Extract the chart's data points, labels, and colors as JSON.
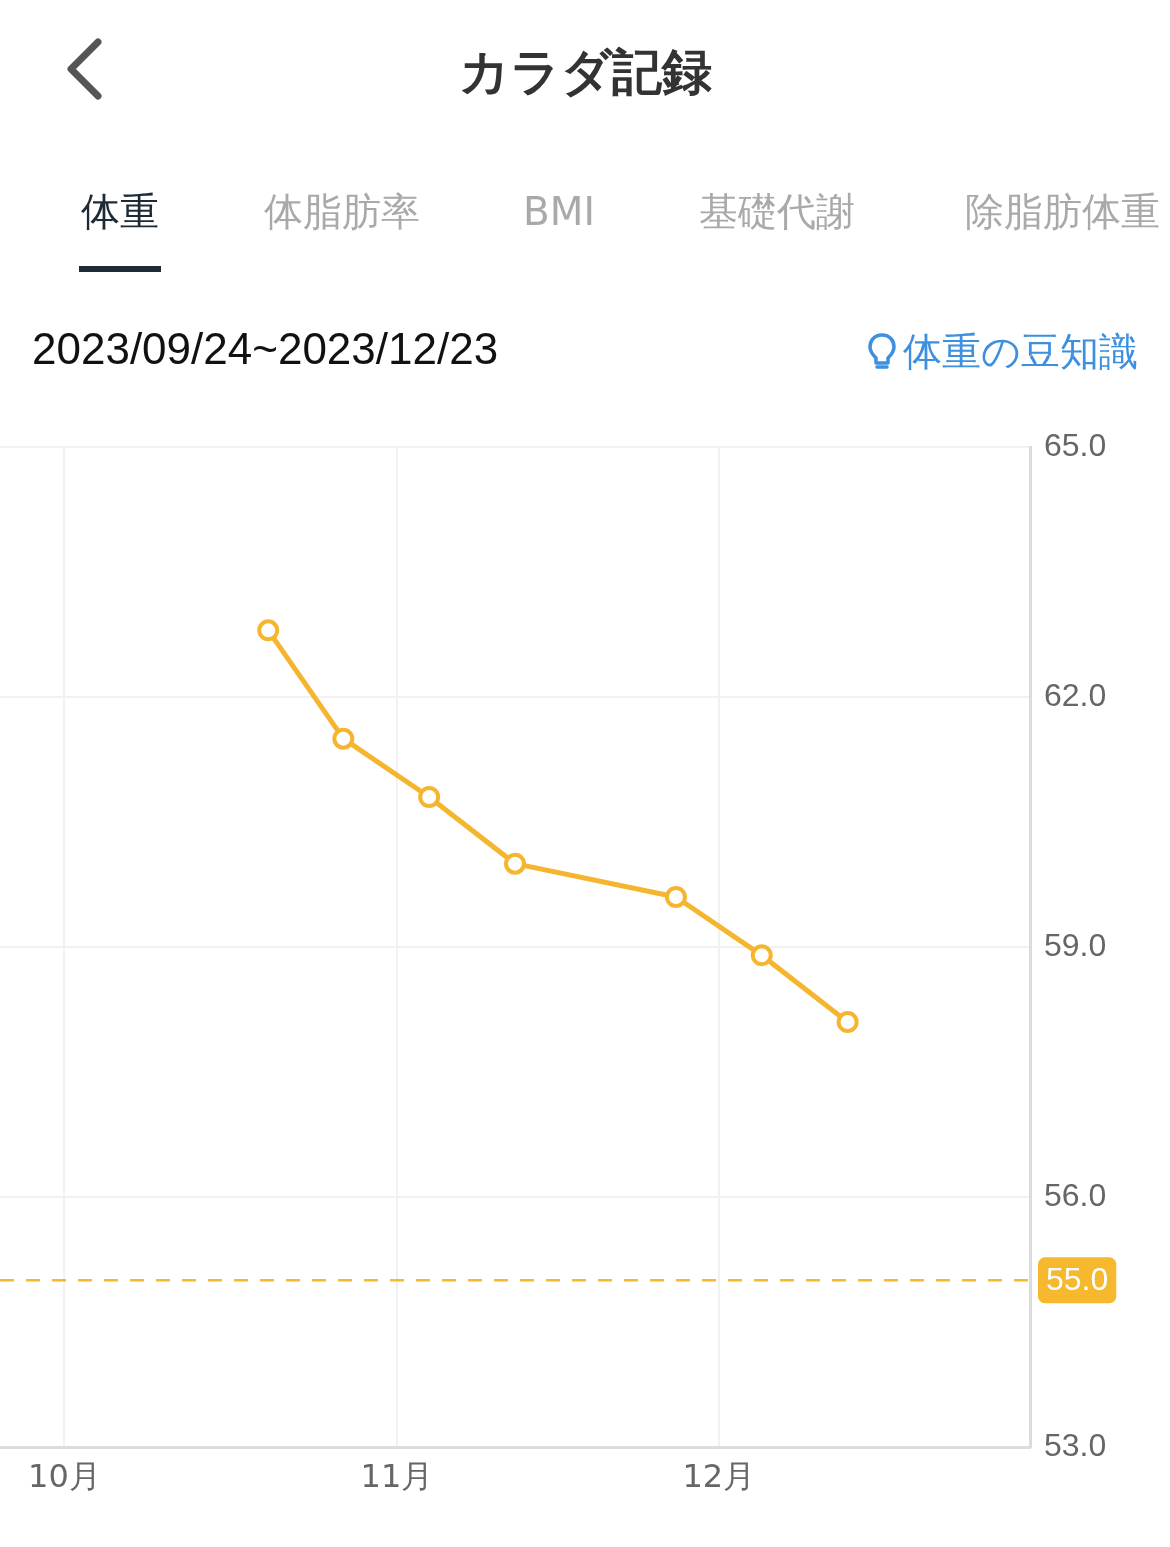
{
  "chart_data": {
    "type": "line",
    "title": "カラダ記録",
    "subtitle": "2023/09/24~2023/12/23",
    "annotations": [
      "体重",
      "体脂肪率",
      "BMI",
      "基礎代謝",
      "除脂肪体重",
      "体重の豆知識"
    ],
    "x": [
      "2023-10-20",
      "2023-10-27",
      "2023-11-04",
      "2023-11-12",
      "2023-11-27",
      "2023-12-05",
      "2023-12-13"
    ],
    "series": [
      {
        "color": "#f5b52e",
        "values": [
          62.8,
          61.5,
          60.8,
          60.0,
          59.6,
          58.9,
          58.1
        ]
      }
    ],
    "xlim": [
      "2023-09-25",
      "2023-12-30"
    ],
    "xticks": [
      {
        "value": "2023-10-01",
        "label": "10月"
      },
      {
        "value": "2023-11-01",
        "label": "11月"
      },
      {
        "value": "2023-12-01",
        "label": "12月"
      }
    ],
    "ylim": [
      53,
      65
    ],
    "yticks": [
      {
        "value": 53,
        "label": "53.0"
      },
      {
        "value": 56,
        "label": "56.0"
      },
      {
        "value": 59,
        "label": "59.0"
      },
      {
        "value": 62,
        "label": "62.0"
      },
      {
        "value": 65,
        "label": "65.0"
      }
    ],
    "ref_lines": [
      {
        "axis": "y",
        "value": 55,
        "label": "55.0",
        "color": "#f5b82e",
        "line_style": "dashed"
      }
    ],
    "grid": true,
    "marker": "circle",
    "line_style": "solid"
  }
}
